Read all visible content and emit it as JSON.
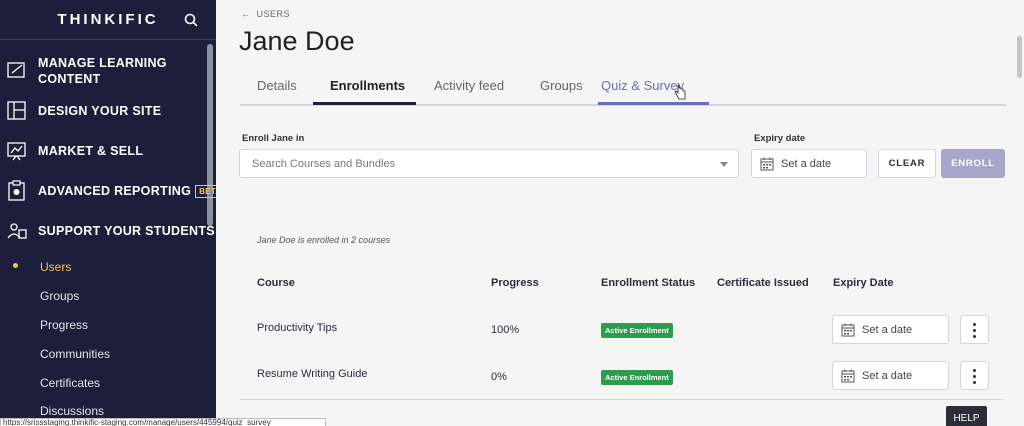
{
  "sidebar": {
    "brand": "THINKIFIC",
    "items": [
      {
        "label": "MANAGE LEARNING CONTENT",
        "icon": "edit-content-icon"
      },
      {
        "label": "DESIGN YOUR SITE",
        "icon": "layout-icon"
      },
      {
        "label": "MARKET & SELL",
        "icon": "chart-board-icon"
      },
      {
        "label": "ADVANCED REPORTING",
        "icon": "report-icon",
        "badge": "BETA"
      },
      {
        "label": "SUPPORT YOUR STUDENTS",
        "icon": "students-icon"
      }
    ],
    "sub_items": [
      "Users",
      "Groups",
      "Progress",
      "Communities",
      "Certificates",
      "Discussions"
    ],
    "active_sub_item": "Users"
  },
  "status_url": "https://srissstaging.thinkific-staging.com/manage/users/445994/quiz_survey",
  "header": {
    "back_label": "USERS",
    "title": "Jane Doe"
  },
  "tabs": [
    {
      "label": "Details"
    },
    {
      "label": "Enrollments",
      "selected": true
    },
    {
      "label": "Activity feed"
    },
    {
      "label": "Groups"
    },
    {
      "label": "Quiz & Survey",
      "hover": true
    }
  ],
  "enroll_form": {
    "enroll_label": "Enroll Jane in",
    "search_placeholder": "Search Courses and Bundles",
    "expiry_label": "Expiry date",
    "date_placeholder": "Set a date",
    "clear_label": "CLEAR",
    "enroll_button": "ENROLL"
  },
  "enrollments": {
    "summary": "Jane Doe is enrolled in 2 courses",
    "columns": [
      "Course",
      "Progress",
      "Enrollment Status",
      "Certificate Issued",
      "Expiry Date"
    ],
    "rows": [
      {
        "course": "Productivity Tips",
        "progress": "100%",
        "status": "Active Enrollment",
        "certificate": "",
        "expiry": "Set a date"
      },
      {
        "course": "Resume Writing Guide",
        "progress": "0%",
        "status": "Active Enrollment",
        "certificate": "",
        "expiry": "Set a date"
      }
    ]
  },
  "help_label": "HELP",
  "colors": {
    "sidebar_bg": "#1d1d3c",
    "accent_yellow": "#f2c94c",
    "tab_hover": "#6b6bc4",
    "selected_underline": "#1d1d3c",
    "badge_green": "#2e9b4f",
    "enroll_disabled": "#a8a6c8"
  }
}
